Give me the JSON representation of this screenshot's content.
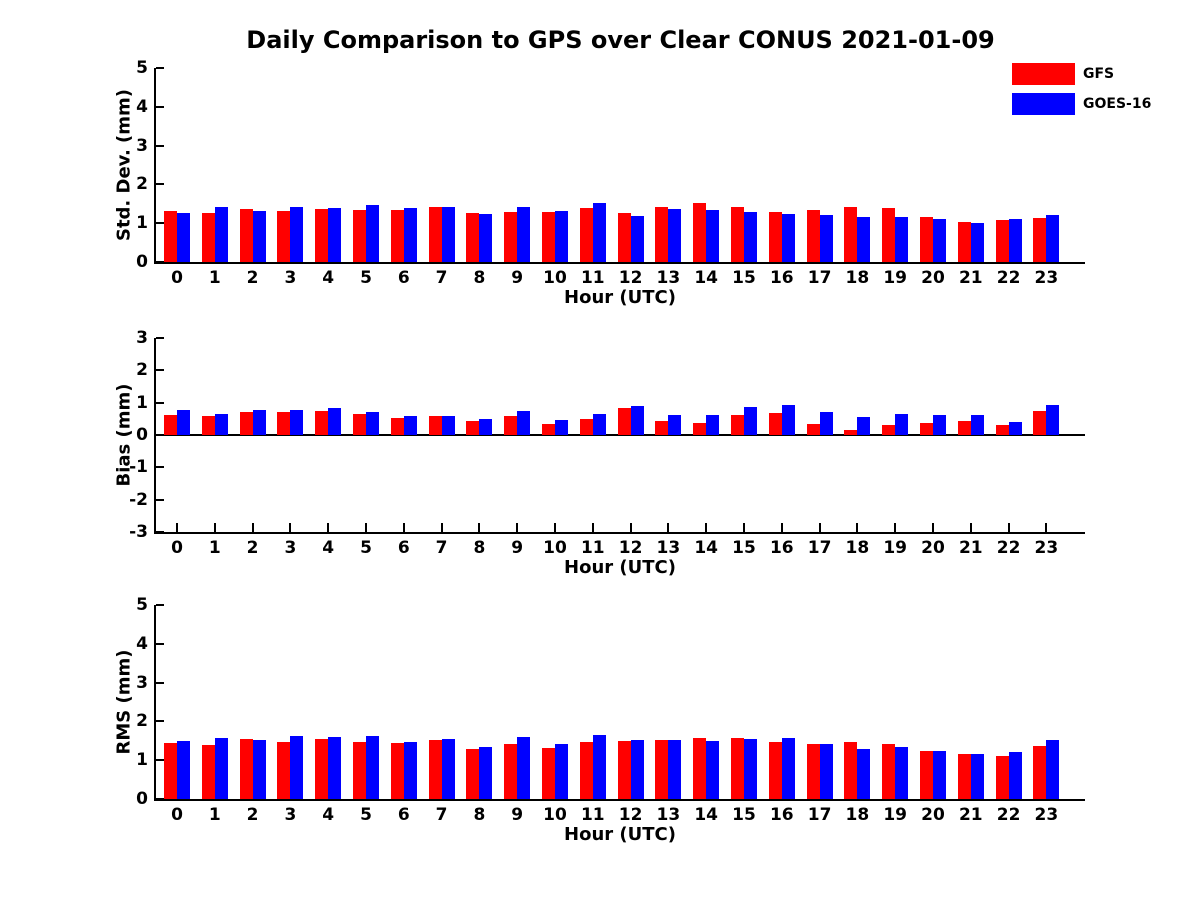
{
  "title": "Daily Comparison to GPS over Clear CONUS 2021-01-09",
  "legend": {
    "items": [
      {
        "label": "GFS",
        "color": "#ff0000"
      },
      {
        "label": "GOES-16",
        "color": "#0000ff"
      }
    ]
  },
  "axis_color": "#000000",
  "chart_data": [
    {
      "type": "bar",
      "ylabel": "Std. Dev. (mm)",
      "xlabel": "Hour (UTC)",
      "ylim": [
        0,
        5
      ],
      "yticks": [
        0,
        1,
        2,
        3,
        4,
        5
      ],
      "grid": false,
      "legend_position": "upper-right-outside",
      "categories": [
        "0",
        "1",
        "2",
        "3",
        "4",
        "5",
        "6",
        "7",
        "8",
        "9",
        "10",
        "11",
        "12",
        "13",
        "14",
        "15",
        "16",
        "17",
        "18",
        "19",
        "20",
        "21",
        "22",
        "23"
      ],
      "series": [
        {
          "name": "GFS",
          "color": "#ff0000",
          "values": [
            1.32,
            1.27,
            1.37,
            1.31,
            1.37,
            1.34,
            1.35,
            1.41,
            1.26,
            1.3,
            1.28,
            1.39,
            1.26,
            1.43,
            1.52,
            1.41,
            1.29,
            1.33,
            1.43,
            1.38,
            1.16,
            1.04,
            1.08,
            1.14
          ]
        },
        {
          "name": "GOES-16",
          "color": "#0000ff",
          "values": [
            1.26,
            1.42,
            1.32,
            1.42,
            1.4,
            1.46,
            1.38,
            1.41,
            1.23,
            1.42,
            1.32,
            1.53,
            1.19,
            1.37,
            1.34,
            1.3,
            1.23,
            1.21,
            1.16,
            1.16,
            1.1,
            1.0,
            1.12,
            1.2
          ]
        }
      ]
    },
    {
      "type": "bar",
      "ylabel": "Bias (mm)",
      "xlabel": "Hour (UTC)",
      "ylim": [
        -3,
        3
      ],
      "yticks": [
        -3,
        -2,
        -1,
        0,
        1,
        2,
        3
      ],
      "grid": false,
      "categories": [
        "0",
        "1",
        "2",
        "3",
        "4",
        "5",
        "6",
        "7",
        "8",
        "9",
        "10",
        "11",
        "12",
        "13",
        "14",
        "15",
        "16",
        "17",
        "18",
        "19",
        "20",
        "21",
        "22",
        "23"
      ],
      "series": [
        {
          "name": "GFS",
          "color": "#ff0000",
          "values": [
            0.62,
            0.58,
            0.7,
            0.71,
            0.73,
            0.64,
            0.52,
            0.58,
            0.43,
            0.58,
            0.34,
            0.48,
            0.82,
            0.42,
            0.37,
            0.63,
            0.67,
            0.35,
            0.17,
            0.32,
            0.36,
            0.43,
            0.3,
            0.74
          ]
        },
        {
          "name": "GOES-16",
          "color": "#0000ff",
          "values": [
            0.78,
            0.66,
            0.78,
            0.78,
            0.82,
            0.72,
            0.58,
            0.59,
            0.51,
            0.73,
            0.47,
            0.66,
            0.91,
            0.62,
            0.62,
            0.88,
            0.93,
            0.71,
            0.56,
            0.66,
            0.62,
            0.61,
            0.39,
            0.93
          ]
        }
      ]
    },
    {
      "type": "bar",
      "ylabel": "RMS (mm)",
      "xlabel": "Hour (UTC)",
      "ylim": [
        0,
        5
      ],
      "yticks": [
        0,
        1,
        2,
        3,
        4,
        5
      ],
      "grid": false,
      "categories": [
        "0",
        "1",
        "2",
        "3",
        "4",
        "5",
        "6",
        "7",
        "8",
        "9",
        "10",
        "11",
        "12",
        "13",
        "14",
        "15",
        "16",
        "17",
        "18",
        "19",
        "20",
        "21",
        "22",
        "23"
      ],
      "series": [
        {
          "name": "GFS",
          "color": "#ff0000",
          "values": [
            1.44,
            1.39,
            1.54,
            1.46,
            1.54,
            1.47,
            1.45,
            1.52,
            1.3,
            1.42,
            1.32,
            1.47,
            1.5,
            1.52,
            1.58,
            1.58,
            1.47,
            1.41,
            1.46,
            1.42,
            1.24,
            1.16,
            1.1,
            1.37
          ]
        },
        {
          "name": "GOES-16",
          "color": "#0000ff",
          "values": [
            1.49,
            1.58,
            1.52,
            1.62,
            1.6,
            1.62,
            1.48,
            1.54,
            1.35,
            1.6,
            1.42,
            1.65,
            1.52,
            1.52,
            1.5,
            1.55,
            1.58,
            1.43,
            1.28,
            1.34,
            1.24,
            1.16,
            1.2,
            1.51
          ]
        }
      ]
    }
  ]
}
